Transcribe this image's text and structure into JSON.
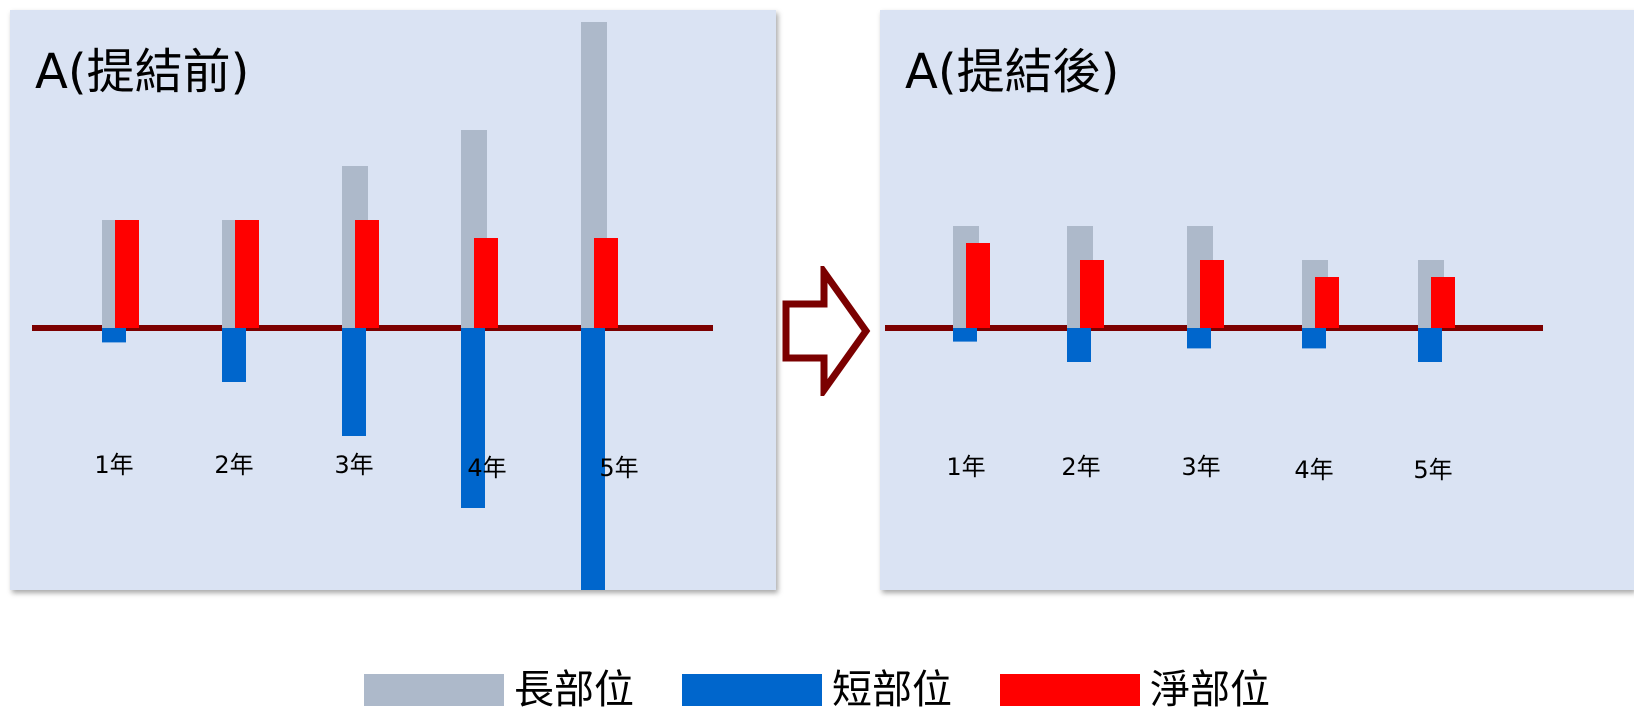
{
  "colors": {
    "long": "#adb9ca",
    "short": "#0066cc",
    "net": "#ff0000",
    "baseline": "#7b0000",
    "arrow": "#7b0000",
    "panel": "#dae3f3"
  },
  "legend": [
    {
      "label": "長部位",
      "color": "#adb9ca"
    },
    {
      "label": "短部位",
      "color": "#0066cc"
    },
    {
      "label": "淨部位",
      "color": "#ff0000"
    }
  ],
  "chart_data": [
    {
      "type": "bar",
      "title": "A(提結前)",
      "categories": [
        "1年",
        "2年",
        "3年",
        "4年",
        "5年"
      ],
      "series": [
        {
          "name": "長部位",
          "values": [
            3,
            3,
            4.5,
            5.5,
            8.5
          ]
        },
        {
          "name": "短部位",
          "values": [
            -0.4,
            -1.5,
            -3,
            -5,
            -8.5
          ]
        },
        {
          "name": "淨部位",
          "values": [
            3,
            3,
            3,
            2.5,
            2.5
          ]
        }
      ]
    },
    {
      "type": "bar",
      "title": "A(提結後)",
      "categories": [
        "1年",
        "2年",
        "3年",
        "4年",
        "5年"
      ],
      "series": [
        {
          "name": "長部位",
          "values": [
            3,
            3,
            3,
            2,
            2
          ]
        },
        {
          "name": "短部位",
          "values": [
            -0.4,
            -1,
            -0.6,
            -0.6,
            -1
          ]
        },
        {
          "name": "淨部位",
          "values": [
            2.5,
            2,
            2,
            1.5,
            1.5
          ]
        }
      ]
    }
  ]
}
